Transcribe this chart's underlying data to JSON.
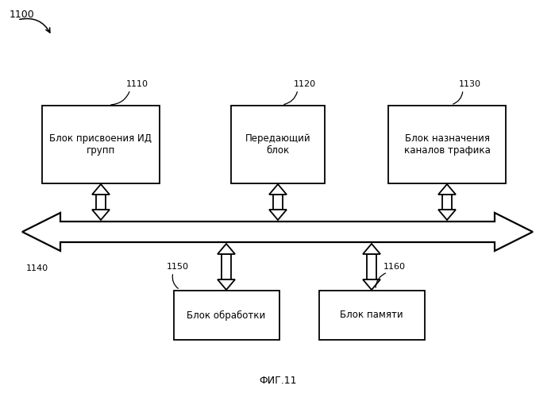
{
  "fig_width": 6.99,
  "fig_height": 5.0,
  "dpi": 100,
  "bg_color": "#ffffff",
  "label_1100": "1100",
  "label_fig": "ФИГ.11",
  "box1_label": "Блок присвоения ИД\nгрупп",
  "box1_id": "1110",
  "box2_label": "Передающий\nблок",
  "box2_id": "1120",
  "box3_label": "Блок назначения\nканалов трафика",
  "box3_id": "1130",
  "box4_label": "Блок обработки",
  "box4_id": "1150",
  "box5_label": "Блок памяти",
  "box5_id": "1160",
  "bus_id": "1140",
  "font_size_box": 8.5,
  "font_size_id": 8,
  "font_size_fig": 9,
  "font_size_1100": 9
}
